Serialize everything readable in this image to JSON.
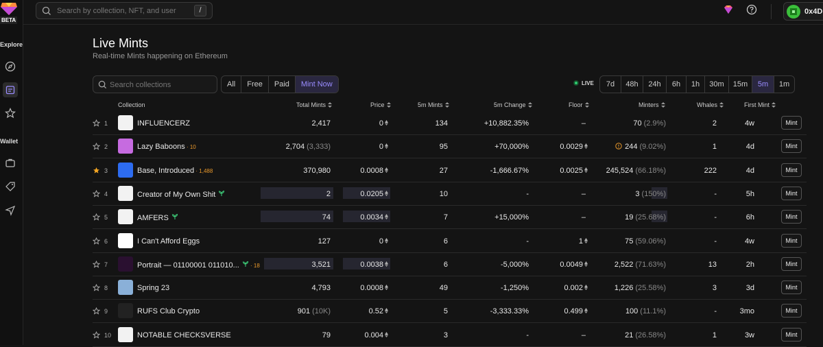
{
  "sidebar": {
    "badge": "BETA",
    "sections": [
      "Explore",
      "Wallet"
    ]
  },
  "topbar": {
    "search_placeholder": "Search by collection, NFT, and user",
    "shortcut": "/",
    "wallet_address": "0x4D..."
  },
  "page": {
    "title": "Live Mints",
    "subtitle": "Real-time Mints happening on Ethereum"
  },
  "filters": {
    "search_placeholder": "Search collections",
    "types": [
      "All",
      "Free",
      "Paid",
      "Mint Now"
    ],
    "active_type": "Mint Now",
    "live_label": "LIVE",
    "times": [
      "7d",
      "48h",
      "24h",
      "6h",
      "1h",
      "30m",
      "15m",
      "5m",
      "1m"
    ],
    "active_time": "5m"
  },
  "columns": [
    "Collection",
    "Total Mints",
    "Price",
    "5m Mints",
    "5m Change",
    "Floor",
    "Minters",
    "Whales",
    "First Mint"
  ],
  "mint_label": "Mint",
  "rows": [
    {
      "rank": "1",
      "name": "INFLUENCERZ",
      "badge": "",
      "total": "2,417",
      "total_sub": "",
      "price": "0",
      "mints": "134",
      "change": "+10,882.35%",
      "change_color": "green",
      "floor": "–",
      "minters": "70",
      "minters_pct": "(2.9%)",
      "whales": "2",
      "first": "4w",
      "starred": false,
      "total_bar": 0,
      "price_bar": 0,
      "minters_bar": 0,
      "thumb": "#f2f2f2",
      "sprout": false,
      "warn": false
    },
    {
      "rank": "2",
      "name": "Lazy Baboons",
      "badge": "10",
      "total": "2,704",
      "total_sub": "(3,333)",
      "price": "0",
      "mints": "95",
      "change": "+70,000%",
      "change_color": "green",
      "floor": "0.0029",
      "minters": "244",
      "minters_pct": "(9.02%)",
      "whales": "1",
      "first": "4d",
      "starred": false,
      "total_bar": 0,
      "price_bar": 0,
      "minters_bar": 0,
      "thumb": "#c66be0",
      "sprout": false,
      "warn": true
    },
    {
      "rank": "3",
      "name": "Base, Introduced",
      "badge": "1,488",
      "total": "370,980",
      "total_sub": "",
      "price": "0.0008",
      "mints": "27",
      "change": "-1,666.67%",
      "change_color": "red",
      "floor": "0.0025",
      "minters": "245,524",
      "minters_pct": "(66.18%)",
      "whales": "222",
      "first": "4d",
      "starred": true,
      "total_bar": 0,
      "price_bar": 0,
      "minters_bar": 0,
      "thumb": "#2d6cf0",
      "sprout": false,
      "warn": false
    },
    {
      "rank": "4",
      "name": "Creator of My Own Shit",
      "badge": "",
      "total": "2",
      "total_sub": "",
      "price": "0.0205",
      "mints": "10",
      "change": "-",
      "change_color": "muted",
      "floor": "–",
      "minters": "3",
      "minters_pct": "(150%)",
      "whales": "-",
      "first": "5h",
      "starred": false,
      "total_bar": 0.95,
      "price_bar": 0.9,
      "minters_bar": 0.4,
      "thumb": "#f2f2f2",
      "sprout": true,
      "warn": false
    },
    {
      "rank": "5",
      "name": "AMFERS",
      "badge": "",
      "total": "74",
      "total_sub": "",
      "price": "0.0034",
      "mints": "7",
      "change": "+15,000%",
      "change_color": "green",
      "floor": "–",
      "minters": "19",
      "minters_pct": "(25.68%)",
      "whales": "-",
      "first": "6h",
      "starred": false,
      "total_bar": 0.95,
      "price_bar": 0.9,
      "minters_bar": 0.4,
      "thumb": "#f2f2f2",
      "sprout": true,
      "warn": false
    },
    {
      "rank": "6",
      "name": "I Can't Afford Eggs",
      "badge": "",
      "total": "127",
      "total_sub": "",
      "price": "0",
      "mints": "6",
      "change": "-",
      "change_color": "muted",
      "floor": "1",
      "minters": "75",
      "minters_pct": "(59.06%)",
      "whales": "-",
      "first": "4w",
      "starred": false,
      "total_bar": 0,
      "price_bar": 0,
      "minters_bar": 0,
      "thumb": "#ffffff",
      "sprout": false,
      "warn": false
    },
    {
      "rank": "7",
      "name": "Portrait — 01100001 011010...",
      "badge": "18",
      "total": "3,521",
      "total_sub": "",
      "price": "0.0038",
      "mints": "6",
      "change": "-5,000%",
      "change_color": "red",
      "floor": "0.0049",
      "minters": "2,522",
      "minters_pct": "(71.63%)",
      "whales": "13",
      "first": "2h",
      "starred": false,
      "total_bar": 0.9,
      "price_bar": 0.9,
      "minters_bar": 0,
      "thumb": "#2a1030",
      "sprout": true,
      "warn": false
    },
    {
      "rank": "8",
      "name": "Spring 23",
      "badge": "",
      "total": "4,793",
      "total_sub": "",
      "price": "0.0008",
      "mints": "49",
      "change": "-1,250%",
      "change_color": "red",
      "floor": "0.002",
      "minters": "1,226",
      "minters_pct": "(25.58%)",
      "whales": "3",
      "first": "3d",
      "starred": false,
      "total_bar": 0,
      "price_bar": 0,
      "minters_bar": 0,
      "thumb": "#8ab0d8",
      "sprout": false,
      "warn": false
    },
    {
      "rank": "9",
      "name": "RUFS Club Crypto",
      "badge": "",
      "total": "901",
      "total_sub": "(10K)",
      "price": "0.52",
      "mints": "5",
      "change": "-3,333.33%",
      "change_color": "red",
      "floor": "0.499",
      "minters": "100",
      "minters_pct": "(11.1%)",
      "whales": "-",
      "first": "3mo",
      "starred": false,
      "total_bar": 0,
      "price_bar": 0,
      "minters_bar": 0,
      "thumb": "#222222",
      "sprout": false,
      "warn": false
    },
    {
      "rank": "10",
      "name": "NOTABLE CHECKSVERSE",
      "badge": "",
      "total": "79",
      "total_sub": "",
      "price": "0.004",
      "mints": "3",
      "change": "-",
      "change_color": "muted",
      "floor": "–",
      "minters": "21",
      "minters_pct": "(26.58%)",
      "whales": "1",
      "first": "3w",
      "starred": false,
      "total_bar": 0,
      "price_bar": 0,
      "minters_bar": 0,
      "thumb": "#f2f2f2",
      "sprout": false,
      "warn": false
    }
  ]
}
